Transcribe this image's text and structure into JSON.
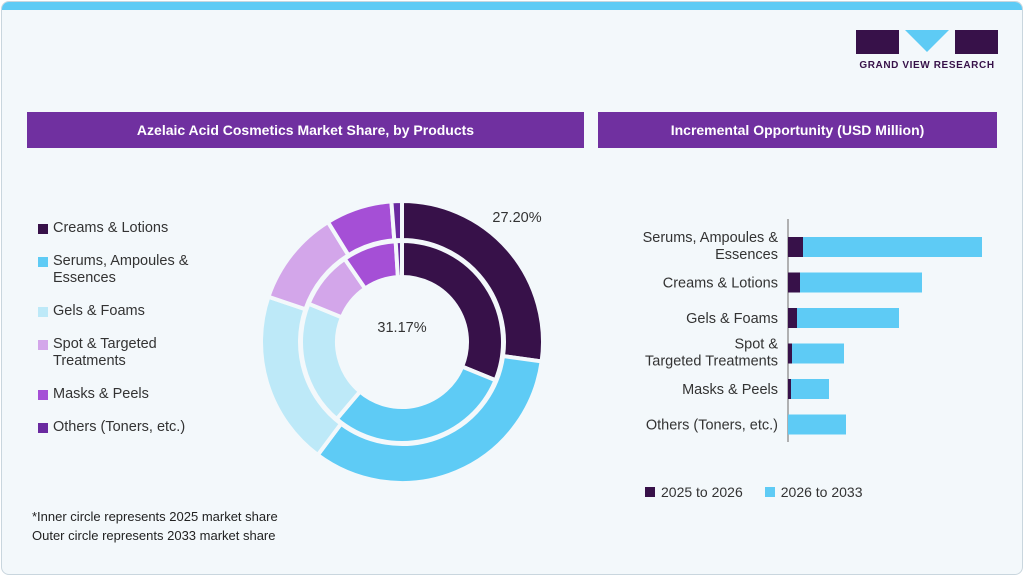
{
  "logo": {
    "text": "GRAND VIEW RESEARCH"
  },
  "left_panel": {
    "title": "Azelaic Acid Cosmetics Market Share, by Products",
    "note_line1": "*Inner circle represents 2025 market share",
    "note_line2": "Outer circle represents 2033 market share"
  },
  "right_panel": {
    "title": "Incremental Opportunity (USD Million)"
  },
  "chart_data": [
    {
      "type": "pie",
      "subtype": "nested-donut",
      "categories": [
        "Creams & Lotions",
        "Serums, Ampoules & Essences",
        "Gels & Foams",
        "Spot & Targeted Treatments",
        "Masks & Peels",
        "Others (Toners, etc.)"
      ],
      "colors": [
        "#371149",
        "#5ecbf5",
        "#bde9f8",
        "#d3a6ea",
        "#a54fd6",
        "#6a2aa0"
      ],
      "series": [
        {
          "name": "2025",
          "ring": "inner",
          "values": [
            31.17,
            30.0,
            20.0,
            9.2,
            8.6,
            1.0
          ]
        },
        {
          "name": "2033",
          "ring": "outer",
          "values": [
            27.2,
            33.0,
            20.0,
            11.0,
            7.6,
            1.2
          ]
        }
      ],
      "data_labels": {
        "inner": "31.17%",
        "outer": "27.20%"
      },
      "legend": "left"
    },
    {
      "type": "bar",
      "orientation": "horizontal",
      "stacked": true,
      "categories": [
        "Serums, Ampoules & Essences",
        "Creams & Lotions",
        "Gels & Foams",
        "Spot & Targeted Treatments",
        "Masks & Peels",
        "Others (Toners, etc.)"
      ],
      "series": [
        {
          "name": "2025 to 2026",
          "color": "#371149",
          "values": [
            15,
            12,
            9,
            4,
            3,
            0
          ]
        },
        {
          "name": "2026 to 2033",
          "color": "#5ecbf5",
          "values": [
            179,
            122,
            102,
            52,
            38,
            58
          ]
        }
      ],
      "legend": "bottom",
      "axis_values_shown": false
    }
  ]
}
